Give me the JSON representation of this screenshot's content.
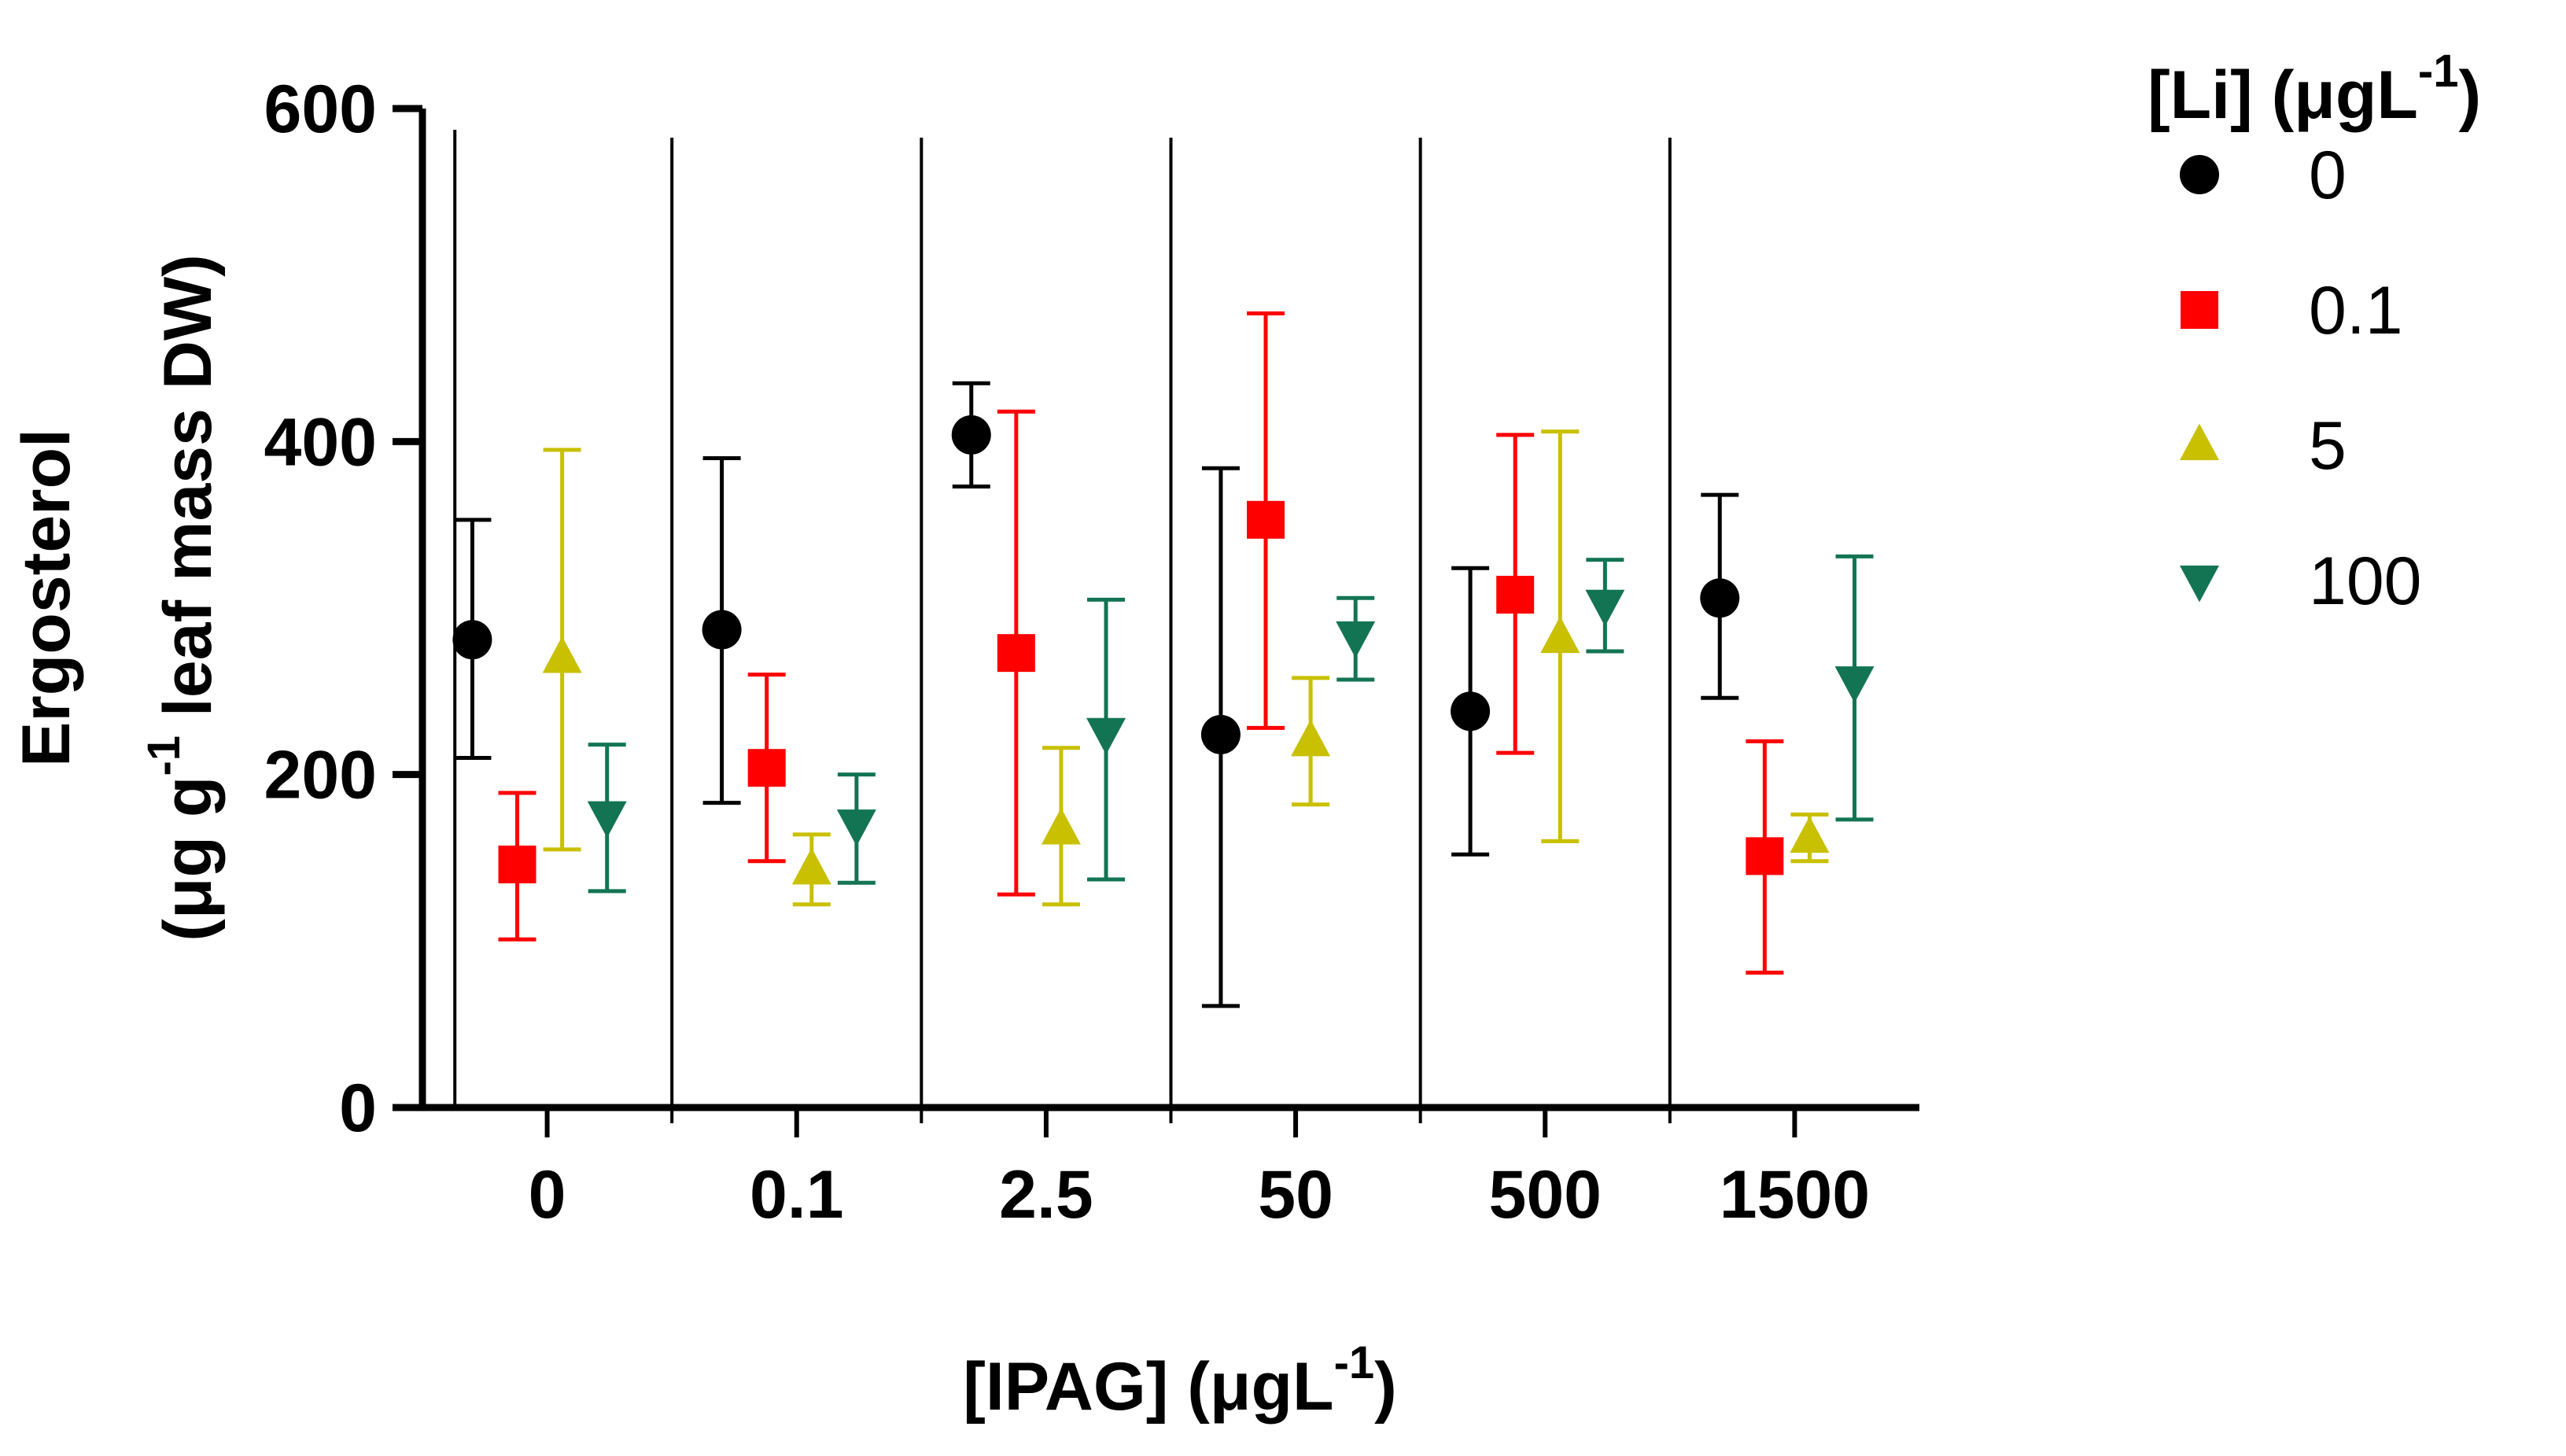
{
  "chart_data": {
    "type": "scatter",
    "title": "",
    "xlabel": "[IPAG] (μgL",
    "xlabel_sup": "-1",
    "xlabel_tail": ")",
    "ylabel_line1": "Ergosterol",
    "ylabel_line2_a": "(μg g",
    "ylabel_line2_sup": "-1",
    "ylabel_line2_b": " leaf mass DW)",
    "ylim": [
      0,
      600
    ],
    "yticks": [
      "0",
      "200",
      "400",
      "600"
    ],
    "ytick_values": [
      0,
      200,
      400,
      600
    ],
    "categories": [
      "0",
      "0.1",
      "2.5",
      "50",
      "500",
      "1500"
    ],
    "legend": {
      "title": "[Li] (μgL",
      "title_sup": "-1",
      "title_tail": ")",
      "position": "top-right"
    },
    "series": [
      {
        "name": "0",
        "color": "#000000",
        "marker": "circle",
        "values": [
          281,
          287,
          404,
          224,
          238,
          306
        ],
        "err_low": [
          210,
          183,
          373,
          61,
          152,
          246
        ],
        "err_high": [
          353,
          390,
          435,
          384,
          324,
          368
        ]
      },
      {
        "name": "0.1",
        "color": "#ff0000",
        "marker": "square",
        "values": [
          146,
          204,
          273,
          353,
          308,
          151
        ],
        "err_low": [
          101,
          148,
          128,
          228,
          213,
          81
        ],
        "err_high": [
          189,
          260,
          418,
          477,
          404,
          220
        ]
      },
      {
        "name": "5",
        "color": "#c8c000",
        "marker": "triangle-up",
        "values": [
          270,
          143,
          167,
          220,
          282,
          162
        ],
        "err_low": [
          155,
          122,
          122,
          182,
          160,
          148
        ],
        "err_high": [
          395,
          164,
          216,
          258,
          406,
          176
        ]
      },
      {
        "name": "100",
        "color": "#137454",
        "marker": "triangle-down",
        "values": [
          175,
          170,
          225,
          283,
          302,
          256
        ],
        "err_low": [
          130,
          135,
          137,
          257,
          274,
          173
        ],
        "err_high": [
          218,
          200,
          305,
          306,
          329,
          331
        ]
      }
    ]
  }
}
